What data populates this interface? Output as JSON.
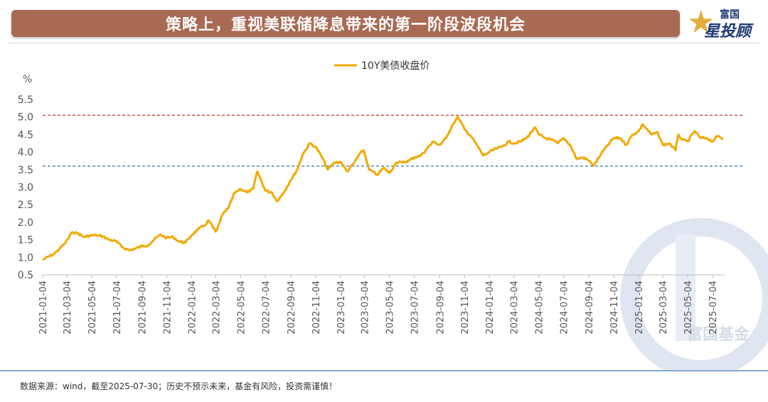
{
  "header": {
    "title": "策略上，重视美联储降息带来的第一阶段波段机会",
    "logo_top": "富国",
    "logo_main": "星投顾"
  },
  "watermark": "富国基金",
  "footer": {
    "note": "数据来源：wind，截至2025-07-30；历史不预示未来，基金有风险，投资需谨慎！"
  },
  "colors": {
    "title_bg": "#a86a52",
    "series": "#f2a900",
    "upper_line": "#c0392b",
    "lower_line": "#2e75b6",
    "logo_gold": "#e3ad3e",
    "logo_navy": "#1f3a73"
  },
  "chart_data": {
    "type": "line",
    "ylabel": "%",
    "ylim": [
      0.5,
      5.5
    ],
    "yticks": [
      "0.5",
      "1.0",
      "1.5",
      "2.0",
      "2.5",
      "3.0",
      "3.5",
      "4.0",
      "4.5",
      "5.0",
      "5.5"
    ],
    "xlim": [
      "2021-01-04",
      "2025-07-30"
    ],
    "xticks": [
      "2021-01-04",
      "2021-03-04",
      "2021-05-04",
      "2021-07-04",
      "2021-09-04",
      "2021-11-04",
      "2022-01-04",
      "2022-03-04",
      "2022-05-04",
      "2022-07-04",
      "2022-09-04",
      "2022-11-04",
      "2023-01-04",
      "2023-03-04",
      "2023-05-04",
      "2023-07-04",
      "2023-09-04",
      "2023-11-04",
      "2024-01-04",
      "2024-03-04",
      "2024-05-04",
      "2024-07-04",
      "2024-09-04",
      "2024-11-04",
      "2025-01-04",
      "2025-03-04",
      "2025-05-04",
      "2025-07-04"
    ],
    "legend": "top-center",
    "grid": false,
    "reference_lines": [
      {
        "y": 5.05,
        "style": "dashed",
        "color": "#c0392b"
      },
      {
        "y": 3.6,
        "style": "dashed",
        "color": "#2e75b6"
      }
    ],
    "series": [
      {
        "name": "10Y美债收盘价",
        "x": [
          "2021-01-04",
          "2021-02-01",
          "2021-02-15",
          "2021-03-01",
          "2021-03-18",
          "2021-04-01",
          "2021-04-15",
          "2021-05-01",
          "2021-05-15",
          "2021-06-01",
          "2021-06-15",
          "2021-07-01",
          "2021-07-20",
          "2021-08-04",
          "2021-08-20",
          "2021-09-04",
          "2021-09-20",
          "2021-10-04",
          "2021-10-20",
          "2021-11-04",
          "2021-11-20",
          "2021-12-04",
          "2021-12-20",
          "2022-01-04",
          "2022-01-20",
          "2022-02-04",
          "2022-02-15",
          "2022-03-04",
          "2022-03-07",
          "2022-03-20",
          "2022-04-04",
          "2022-04-20",
          "2022-05-04",
          "2022-05-20",
          "2022-06-04",
          "2022-06-14",
          "2022-07-04",
          "2022-07-20",
          "2022-08-01",
          "2022-08-15",
          "2022-09-04",
          "2022-09-20",
          "2022-10-04",
          "2022-10-21",
          "2022-11-04",
          "2022-11-20",
          "2022-12-04",
          "2022-12-20",
          "2023-01-04",
          "2023-01-20",
          "2023-02-04",
          "2023-02-20",
          "2023-03-02",
          "2023-03-15",
          "2023-04-04",
          "2023-04-20",
          "2023-05-04",
          "2023-05-20",
          "2023-06-04",
          "2023-06-20",
          "2023-07-04",
          "2023-07-20",
          "2023-08-04",
          "2023-08-20",
          "2023-09-04",
          "2023-09-20",
          "2023-10-04",
          "2023-10-19",
          "2023-11-04",
          "2023-11-20",
          "2023-12-04",
          "2023-12-20",
          "2024-01-04",
          "2024-01-20",
          "2024-02-04",
          "2024-02-20",
          "2024-03-04",
          "2024-03-20",
          "2024-04-04",
          "2024-04-25",
          "2024-05-04",
          "2024-05-20",
          "2024-06-04",
          "2024-06-20",
          "2024-07-04",
          "2024-07-20",
          "2024-08-05",
          "2024-08-20",
          "2024-09-04",
          "2024-09-16",
          "2024-10-04",
          "2024-10-20",
          "2024-11-04",
          "2024-11-20",
          "2024-12-04",
          "2024-12-20",
          "2025-01-04",
          "2025-01-14",
          "2025-02-04",
          "2025-02-20",
          "2025-03-04",
          "2025-03-20",
          "2025-04-04",
          "2025-04-11",
          "2025-04-20",
          "2025-05-04",
          "2025-05-21",
          "2025-06-04",
          "2025-06-20",
          "2025-07-04",
          "2025-07-15",
          "2025-07-30"
        ],
        "y": [
          0.93,
          1.1,
          1.25,
          1.42,
          1.72,
          1.68,
          1.58,
          1.62,
          1.63,
          1.6,
          1.5,
          1.47,
          1.28,
          1.2,
          1.25,
          1.32,
          1.35,
          1.5,
          1.65,
          1.55,
          1.58,
          1.45,
          1.42,
          1.63,
          1.8,
          1.9,
          2.05,
          1.73,
          1.78,
          2.2,
          2.4,
          2.85,
          2.95,
          2.85,
          2.95,
          3.45,
          2.9,
          2.85,
          2.6,
          2.8,
          3.2,
          3.5,
          3.95,
          4.25,
          4.15,
          3.85,
          3.5,
          3.7,
          3.72,
          3.45,
          3.65,
          3.95,
          4.05,
          3.5,
          3.35,
          3.55,
          3.4,
          3.7,
          3.7,
          3.75,
          3.85,
          3.9,
          4.1,
          4.3,
          4.2,
          4.4,
          4.75,
          5.0,
          4.65,
          4.45,
          4.2,
          3.9,
          4.0,
          4.1,
          4.15,
          4.3,
          4.25,
          4.3,
          4.4,
          4.7,
          4.5,
          4.4,
          4.35,
          4.25,
          4.4,
          4.2,
          3.8,
          3.85,
          3.75,
          3.62,
          3.95,
          4.2,
          4.4,
          4.4,
          4.2,
          4.5,
          4.6,
          4.79,
          4.5,
          4.55,
          4.2,
          4.25,
          4.05,
          4.5,
          4.35,
          4.3,
          4.6,
          4.4,
          4.4,
          4.3,
          4.45,
          4.38
        ]
      }
    ]
  }
}
